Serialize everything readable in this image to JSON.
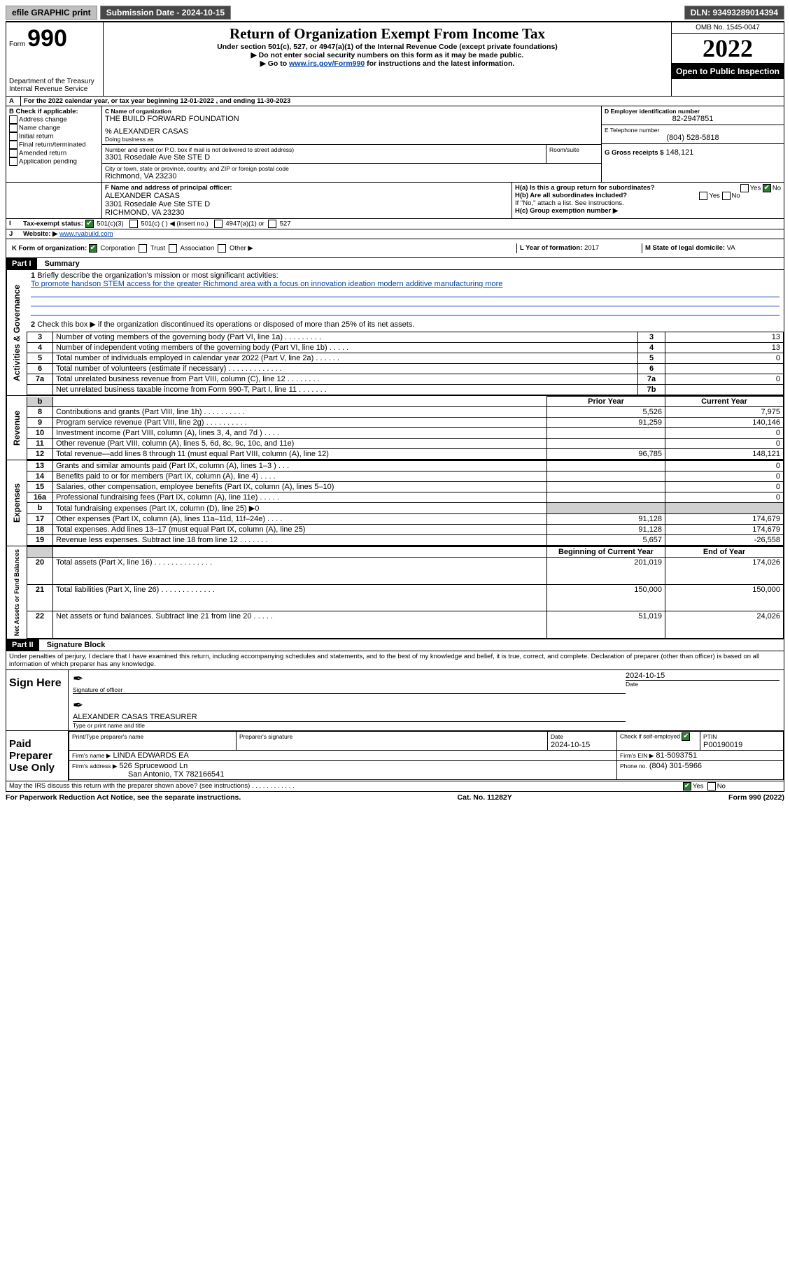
{
  "topbar": {
    "efile": "efile GRAPHIC print",
    "subdate_label": "Submission Date - 2024-10-15",
    "dln": "DLN: 93493289014394"
  },
  "header": {
    "form_prefix": "Form",
    "form_number": "990",
    "dept": "Department of the Treasury\nInternal Revenue Service",
    "title": "Return of Organization Exempt From Income Tax",
    "sub1": "Under section 501(c), 527, or 4947(a)(1) of the Internal Revenue Code (except private foundations)",
    "sub2": "▶ Do not enter social security numbers on this form as it may be made public.",
    "sub3_pre": "▶ Go to ",
    "sub3_link": "www.irs.gov/Form990",
    "sub3_post": " for instructions and the latest information.",
    "omb": "OMB No. 1545-0047",
    "year": "2022",
    "open": "Open to Public Inspection"
  },
  "periodA": {
    "text_pre": "For the 2022 calendar year, or tax year beginning ",
    "begin": "12-01-2022",
    "mid": " , and ending ",
    "end": "11-30-2023"
  },
  "B": {
    "label": "B Check if applicable:",
    "items": [
      "Address change",
      "Name change",
      "Initial return",
      "Final return/terminated",
      "Amended return",
      "Application pending"
    ]
  },
  "C": {
    "label": "C Name of organization",
    "org": "THE BUILD FORWARD FOUNDATION",
    "care": "% ALEXANDER CASAS",
    "dba_label": "Doing business as",
    "street_label": "Number and street (or P.O. box if mail is not delivered to street address)",
    "room_label": "Room/suite",
    "street": "3301 Rosedale Ave Ste STE D",
    "city_label": "City or town, state or province, country, and ZIP or foreign postal code",
    "city": "Richmond, VA  23230"
  },
  "D": {
    "label": "D Employer identification number",
    "ein": "82-2947851"
  },
  "E": {
    "label": "E Telephone number",
    "phone": "(804) 528-5818"
  },
  "G": {
    "label": "G Gross receipts $",
    "val": "148,121"
  },
  "F": {
    "label": "F Name and address of principal officer:",
    "name": "ALEXANDER CASAS",
    "addr1": "3301 Rosedale Ave Ste STE D",
    "addr2": "RICHMOND, VA  23230"
  },
  "H": {
    "a": "H(a)  Is this a group return for subordinates?",
    "b": "H(b)  Are all subordinates included?",
    "b_note": "If \"No,\" attach a list. See instructions.",
    "c": "H(c)  Group exemption number ▶",
    "yes": "Yes",
    "no": "No"
  },
  "I": {
    "label": "Tax-exempt status:",
    "opt1": "501(c)(3)",
    "opt2": "501(c) (  ) ◀ (insert no.)",
    "opt3": "4947(a)(1) or",
    "opt4": "527"
  },
  "J": {
    "label": "Website: ▶",
    "val": "www.rvabuild.com"
  },
  "K": {
    "label": "K Form of organization:",
    "opts": [
      "Corporation",
      "Trust",
      "Association",
      "Other ▶"
    ]
  },
  "L": {
    "label": "L Year of formation:",
    "val": "2017"
  },
  "M": {
    "label": "M State of legal domicile:",
    "val": "VA"
  },
  "partI": {
    "hdr": "Part I",
    "title": "Summary",
    "q1": "Briefly describe the organization's mission or most significant activities:",
    "q1_ans": "To promote handson STEM access for the greater Richmond area with a focus on innovation ideation modern additive manufacturing more",
    "q2": "Check this box ▶        if the organization discontinued its operations or disposed of more than 25% of its net assets.",
    "sections": {
      "gov": "Activities & Governance",
      "rev": "Revenue",
      "exp": "Expenses",
      "net": "Net Assets or Fund Balances"
    },
    "col_prior": "Prior Year",
    "col_curr": "Current Year",
    "col_boy": "Beginning of Current Year",
    "col_eoy": "End of Year",
    "rows": [
      {
        "n": "3",
        "t": "Number of voting members of the governing body (Part VI, line 1a)   .    .    .    .    .    .    .    .    .",
        "box": "3",
        "v1": "13"
      },
      {
        "n": "4",
        "t": "Number of independent voting members of the governing body (Part VI, line 1b)   .    .    .    .    .",
        "box": "4",
        "v1": "13"
      },
      {
        "n": "5",
        "t": "Total number of individuals employed in calendar year 2022 (Part V, line 2a)   .    .    .    .    .    .",
        "box": "5",
        "v1": "0"
      },
      {
        "n": "6",
        "t": "Total number of volunteers (estimate if necessary)   .    .    .    .    .    .    .    .    .    .    .    .    .",
        "box": "6",
        "v1": ""
      },
      {
        "n": "7a",
        "t": "Total unrelated business revenue from Part VIII, column (C), line 12   .    .    .    .    .    .    .    .",
        "box": "7a",
        "v1": "0"
      },
      {
        "n": "",
        "t": "Net unrelated business taxable income from Form 990-T, Part I, line 11    .    .    .    .    .    .    .",
        "box": "7b",
        "v1": ""
      }
    ],
    "rev_rows": [
      {
        "n": "8",
        "t": "Contributions and grants (Part VIII, line 1h)   .    .    .    .    .    .    .    .    .    .",
        "p": "5,526",
        "c": "7,975"
      },
      {
        "n": "9",
        "t": "Program service revenue (Part VIII, line 2g)   .    .    .    .    .    .    .    .    .    .",
        "p": "91,259",
        "c": "140,146"
      },
      {
        "n": "10",
        "t": "Investment income (Part VIII, column (A), lines 3, 4, and 7d )   .    .    .    .",
        "p": "",
        "c": "0"
      },
      {
        "n": "11",
        "t": "Other revenue (Part VIII, column (A), lines 5, 6d, 8c, 9c, 10c, and 11e)",
        "p": "",
        "c": "0"
      },
      {
        "n": "12",
        "t": "Total revenue—add lines 8 through 11 (must equal Part VIII, column (A), line 12)",
        "p": "96,785",
        "c": "148,121"
      }
    ],
    "exp_rows": [
      {
        "n": "13",
        "t": "Grants and similar amounts paid (Part IX, column (A), lines 1–3 )   .    .    .",
        "p": "",
        "c": "0"
      },
      {
        "n": "14",
        "t": "Benefits paid to or for members (Part IX, column (A), line 4)   .    .    .    .",
        "p": "",
        "c": "0"
      },
      {
        "n": "15",
        "t": "Salaries, other compensation, employee benefits (Part IX, column (A), lines 5–10)",
        "p": "",
        "c": "0"
      },
      {
        "n": "16a",
        "t": "Professional fundraising fees (Part IX, column (A), line 11e)   .    .    .    .    .",
        "p": "",
        "c": "0"
      },
      {
        "n": "b",
        "t": "Total fundraising expenses (Part IX, column (D), line 25) ▶0",
        "p": "SHADE",
        "c": "SHADE"
      },
      {
        "n": "17",
        "t": "Other expenses (Part IX, column (A), lines 11a–11d, 11f–24e)  .    .    .    .",
        "p": "91,128",
        "c": "174,679"
      },
      {
        "n": "18",
        "t": "Total expenses. Add lines 13–17 (must equal Part IX, column (A), line 25)",
        "p": "91,128",
        "c": "174,679"
      },
      {
        "n": "19",
        "t": "Revenue less expenses. Subtract line 18 from line 12  .    .    .    .    .    .    .",
        "p": "5,657",
        "c": "-26,558"
      }
    ],
    "net_rows": [
      {
        "n": "20",
        "t": "Total assets (Part X, line 16)  .    .    .    .    .    .    .    .    .    .    .    .    .    .",
        "p": "201,019",
        "c": "174,026"
      },
      {
        "n": "21",
        "t": "Total liabilities (Part X, line 26)  .    .    .    .    .    .    .    .    .    .    .    .    .",
        "p": "150,000",
        "c": "150,000"
      },
      {
        "n": "22",
        "t": "Net assets or fund balances. Subtract line 21 from line 20   .    .    .    .    .",
        "p": "51,019",
        "c": "24,026"
      }
    ]
  },
  "partII": {
    "hdr": "Part II",
    "title": "Signature Block",
    "decl": "Under penalties of perjury, I declare that I have examined this return, including accompanying schedules and statements, and to the best of my knowledge and belief, it is true, correct, and complete. Declaration of preparer (other than officer) is based on all information of which preparer has any knowledge.",
    "sign_here": "Sign Here",
    "sig_officer": "Signature of officer",
    "sig_date_label": "Date",
    "sig_date": "2024-10-15",
    "officer_name": "ALEXANDER CASAS  TREASURER",
    "officer_sub": "Type or print name and title",
    "paid": "Paid Preparer Use Only",
    "prep_name_label": "Print/Type preparer's name",
    "prep_sig_label": "Preparer's signature",
    "prep_date_label": "Date",
    "prep_date": "2024-10-15",
    "check_self": "Check         if self-employed",
    "ptin_label": "PTIN",
    "ptin": "P00190019",
    "firm_name_label": "Firm's name     ▶",
    "firm_name": "LINDA EDWARDS EA",
    "firm_ein_label": "Firm's EIN ▶",
    "firm_ein": "81-5093751",
    "firm_addr_label": "Firm's address ▶",
    "firm_addr1": "526 Sprucewood Ln",
    "firm_addr2": "San Antonio, TX  782166541",
    "firm_phone_label": "Phone no.",
    "firm_phone": "(804) 301-5966",
    "may_irs": "May the IRS discuss this return with the preparer shown above? (see instructions)    .    .    .    .    .    .    .    .    .    .    .    .",
    "yes": "Yes",
    "no": "No"
  },
  "footer": {
    "left": "For Paperwork Reduction Act Notice, see the separate instructions.",
    "mid": "Cat. No. 11282Y",
    "right": "Form 990 (2022)"
  }
}
